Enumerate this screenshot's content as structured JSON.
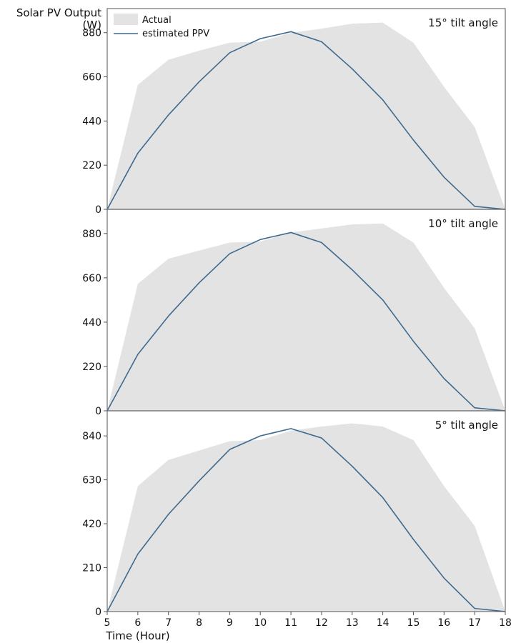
{
  "figure": {
    "ylabel_line1": "Solar PV Output",
    "ylabel_line2": "(W)",
    "xlabel": "Time (Hour)"
  },
  "legend": {
    "actual_label": "Actual",
    "estimated_label": "estimated PPV",
    "actual_color": "#e3e3e3",
    "estimated_color": "#3e6a8f"
  },
  "chart_data": [
    {
      "type": "area",
      "title": "15° tilt angle",
      "x": [
        5,
        6,
        7,
        8,
        9,
        10,
        11,
        12,
        13,
        14,
        15,
        16,
        17,
        18
      ],
      "xlabel": "Time (Hour)",
      "ylabel": "Solar PV Output (W)",
      "ylim": [
        0,
        1000
      ],
      "yticks": [
        0,
        220,
        440,
        660,
        880
      ],
      "series": [
        {
          "name": "Actual",
          "values": [
            0,
            620,
            745,
            790,
            830,
            835,
            880,
            900,
            925,
            930,
            830,
            610,
            410,
            0
          ]
        },
        {
          "name": "estimated PPV",
          "values": [
            0,
            280,
            470,
            635,
            780,
            850,
            885,
            835,
            700,
            545,
            345,
            160,
            15,
            0
          ]
        }
      ]
    },
    {
      "type": "area",
      "title": "10° tilt angle",
      "x": [
        5,
        6,
        7,
        8,
        9,
        10,
        11,
        12,
        13,
        14,
        15,
        16,
        17,
        18
      ],
      "xlabel": "Time (Hour)",
      "ylabel": "Solar PV Output (W)",
      "ylim": [
        0,
        1000
      ],
      "yticks": [
        0,
        220,
        440,
        660,
        880
      ],
      "series": [
        {
          "name": "Actual",
          "values": [
            0,
            630,
            755,
            795,
            835,
            840,
            885,
            905,
            925,
            930,
            835,
            610,
            410,
            0
          ]
        },
        {
          "name": "estimated PPV",
          "values": [
            0,
            280,
            470,
            635,
            780,
            850,
            885,
            835,
            700,
            550,
            345,
            160,
            15,
            0
          ]
        }
      ]
    },
    {
      "type": "area",
      "title": "5° tilt angle",
      "x": [
        5,
        6,
        7,
        8,
        9,
        10,
        11,
        12,
        13,
        14,
        15,
        16,
        17,
        18
      ],
      "xlabel": "Time (Hour)",
      "ylabel": "Solar PV Output (W)",
      "ylim": [
        0,
        960
      ],
      "yticks": [
        0,
        210,
        420,
        630,
        840
      ],
      "series": [
        {
          "name": "Actual",
          "values": [
            0,
            600,
            725,
            770,
            815,
            820,
            865,
            885,
            900,
            885,
            820,
            600,
            410,
            0
          ]
        },
        {
          "name": "estimated PPV",
          "values": [
            0,
            275,
            465,
            625,
            775,
            840,
            875,
            830,
            695,
            545,
            345,
            160,
            15,
            0
          ]
        }
      ]
    }
  ]
}
